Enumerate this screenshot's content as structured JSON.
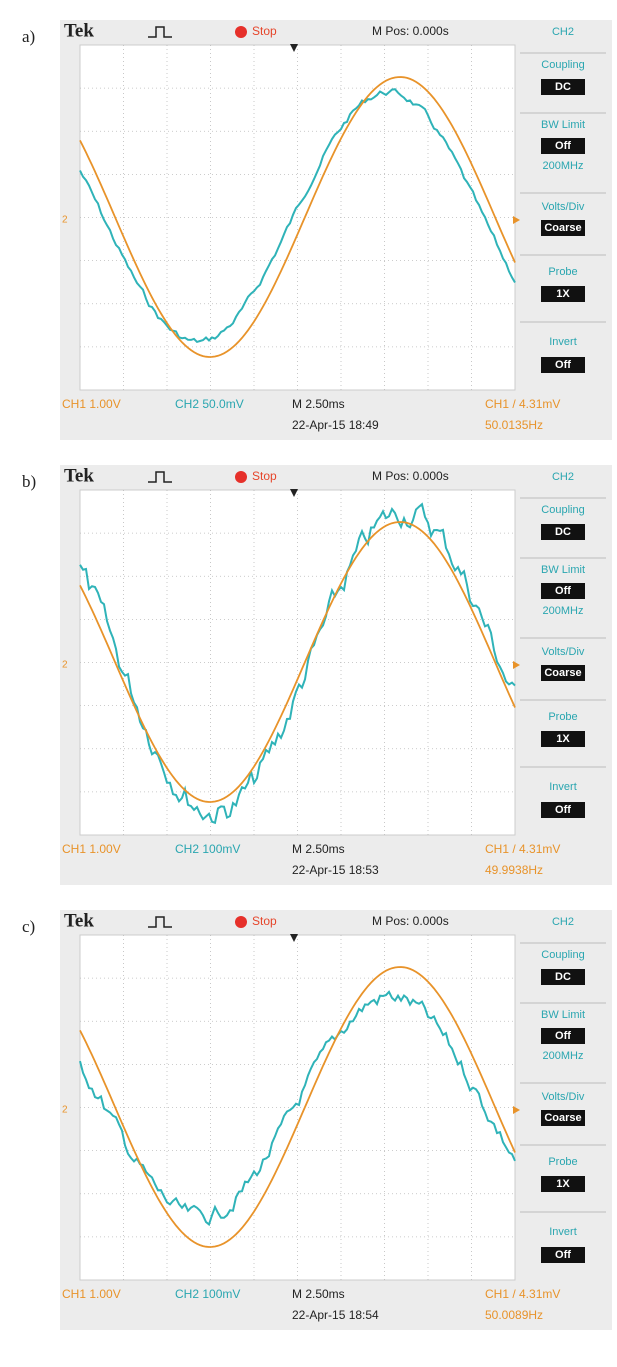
{
  "panels": [
    {
      "label": "a)",
      "brand": "Tek",
      "status": "Stop",
      "mpos": "M Pos: 0.000s",
      "menu": {
        "channel": "CH2",
        "coupling_title": "Coupling",
        "coupling": "DC",
        "bw_title": "BW Limit",
        "bw": "Off",
        "bw_freq": "200MHz",
        "volts_title": "Volts/Div",
        "volts": "Coarse",
        "probe_title": "Probe",
        "probe": "1X",
        "invert_title": "Invert",
        "invert": "Off"
      },
      "marker": "2",
      "ch1": "CH1 1.00V",
      "ch2": "CH2 50.0mV",
      "timebase": "M 2.50ms",
      "datetime": "22-Apr-15 18:49",
      "trigger": "CH1 / 4.31mV",
      "frequency": "50.0135Hz"
    },
    {
      "label": "b)",
      "brand": "Tek",
      "status": "Stop",
      "mpos": "M Pos: 0.000s",
      "menu": {
        "channel": "CH2",
        "coupling_title": "Coupling",
        "coupling": "DC",
        "bw_title": "BW Limit",
        "bw": "Off",
        "bw_freq": "200MHz",
        "volts_title": "Volts/Div",
        "volts": "Coarse",
        "probe_title": "Probe",
        "probe": "1X",
        "invert_title": "Invert",
        "invert": "Off"
      },
      "marker": "2",
      "ch1": "CH1 1.00V",
      "ch2": "CH2 100mV",
      "timebase": "M 2.50ms",
      "datetime": "22-Apr-15 18:53",
      "trigger": "CH1 / 4.31mV",
      "frequency": "49.9938Hz"
    },
    {
      "label": "c)",
      "brand": "Tek",
      "status": "Stop",
      "mpos": "M Pos: 0.000s",
      "menu": {
        "channel": "CH2",
        "coupling_title": "Coupling",
        "coupling": "DC",
        "bw_title": "BW Limit",
        "bw": "Off",
        "bw_freq": "200MHz",
        "volts_title": "Volts/Div",
        "volts": "Coarse",
        "probe_title": "Probe",
        "probe": "1X",
        "invert_title": "Invert",
        "invert": "Off"
      },
      "marker": "2",
      "ch1": "CH1 1.00V",
      "ch2": "CH2 100mV",
      "timebase": "M 2.50ms",
      "datetime": "22-Apr-15 18:54",
      "trigger": "CH1 / 4.31mV",
      "frequency": "50.0089Hz"
    }
  ]
}
